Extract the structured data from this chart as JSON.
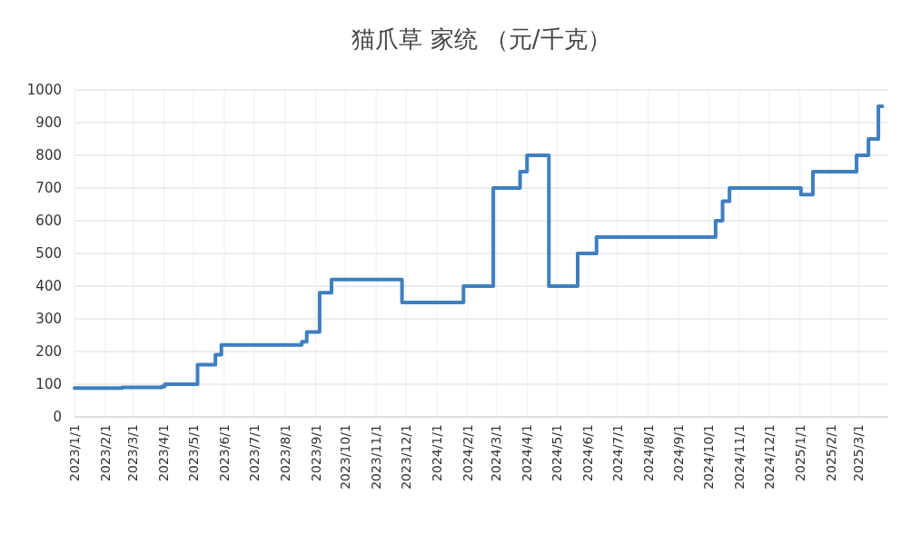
{
  "chart_data": {
    "type": "step",
    "title": "猫爪草 家统 （元/千克）",
    "x": [
      "2023-01-01",
      "2023-02-18",
      "2023-03-30",
      "2023-04-02",
      "2023-05-05",
      "2023-05-23",
      "2023-05-29",
      "2023-08-18",
      "2023-08-23",
      "2023-09-05",
      "2023-09-17",
      "2023-11-27",
      "2024-01-28",
      "2024-02-27",
      "2024-03-25",
      "2024-04-01",
      "2024-04-23",
      "2024-05-22",
      "2024-06-10",
      "2024-10-08",
      "2024-10-15",
      "2024-10-22",
      "2025-01-02",
      "2025-01-14",
      "2025-02-27",
      "2025-03-11",
      "2025-03-21",
      "2025-03-25"
    ],
    "series": [
      {
        "color": "#3f7fbf",
        "values": [
          88,
          90,
          93,
          100,
          160,
          190,
          220,
          230,
          260,
          380,
          420,
          350,
          400,
          700,
          750,
          800,
          400,
          500,
          550,
          600,
          660,
          700,
          680,
          750,
          800,
          850,
          950,
          950
        ]
      }
    ],
    "xlim": [
      "2023-01-01",
      "2025-03-31"
    ],
    "xticks": [
      {
        "value": "2023-01-01",
        "label": "2023/1/1"
      },
      {
        "value": "2023-02-01",
        "label": "2023/2/1"
      },
      {
        "value": "2023-03-01",
        "label": "2023/3/1"
      },
      {
        "value": "2023-04-01",
        "label": "2023/4/1"
      },
      {
        "value": "2023-05-01",
        "label": "2023/5/1"
      },
      {
        "value": "2023-06-01",
        "label": "2023/6/1"
      },
      {
        "value": "2023-07-01",
        "label": "2023/7/1"
      },
      {
        "value": "2023-08-01",
        "label": "2023/8/1"
      },
      {
        "value": "2023-09-01",
        "label": "2023/9/1"
      },
      {
        "value": "2023-10-01",
        "label": "2023/10/1"
      },
      {
        "value": "2023-11-01",
        "label": "2023/11/1"
      },
      {
        "value": "2023-12-01",
        "label": "2023/12/1"
      },
      {
        "value": "2024-01-01",
        "label": "2024/1/1"
      },
      {
        "value": "2024-02-01",
        "label": "2024/2/1"
      },
      {
        "value": "2024-03-01",
        "label": "2024/3/1"
      },
      {
        "value": "2024-04-01",
        "label": "2024/4/1"
      },
      {
        "value": "2024-05-01",
        "label": "2024/5/1"
      },
      {
        "value": "2024-06-01",
        "label": "2024/6/1"
      },
      {
        "value": "2024-07-01",
        "label": "2024/7/1"
      },
      {
        "value": "2024-08-01",
        "label": "2024/8/1"
      },
      {
        "value": "2024-09-01",
        "label": "2024/9/1"
      },
      {
        "value": "2024-10-01",
        "label": "2024/10/1"
      },
      {
        "value": "2024-11-01",
        "label": "2024/11/1"
      },
      {
        "value": "2024-12-01",
        "label": "2024/12/1"
      },
      {
        "value": "2025-01-01",
        "label": "2025/1/1"
      },
      {
        "value": "2025-02-01",
        "label": "2025/2/1"
      },
      {
        "value": "2025-03-01",
        "label": "2025/3/1"
      }
    ],
    "ylim": [
      0,
      1000
    ],
    "yticks": [
      0,
      100,
      200,
      300,
      400,
      500,
      600,
      700,
      800,
      900,
      1000
    ],
    "grid": true
  }
}
